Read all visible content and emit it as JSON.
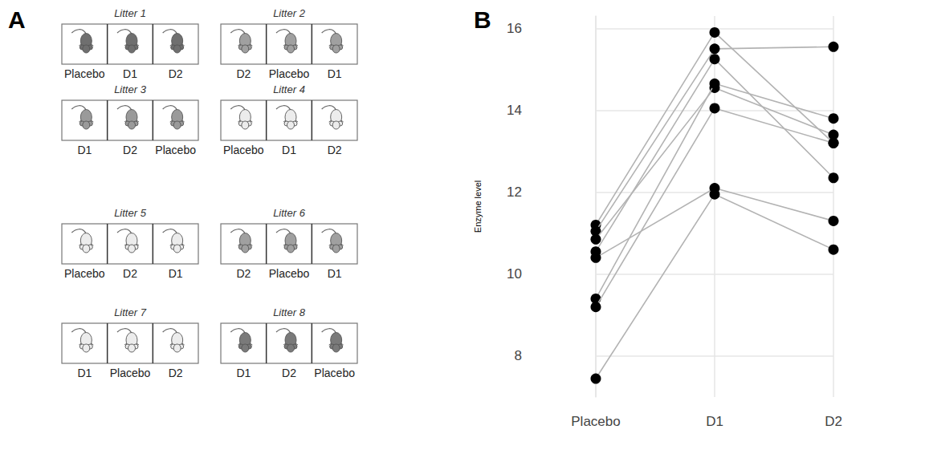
{
  "panel_labels": [
    "A",
    "B"
  ],
  "litters": [
    {
      "title": "Litter 1",
      "color": "#6f6f6f",
      "treatments": [
        "Placebo",
        "D1",
        "D2"
      ]
    },
    {
      "title": "Litter 2",
      "color": "#a0a0a0",
      "treatments": [
        "D2",
        "Placebo",
        "D1"
      ]
    },
    {
      "title": "Litter 3",
      "color": "#9a9a9a",
      "treatments": [
        "D1",
        "D2",
        "Placebo"
      ]
    },
    {
      "title": "Litter 4",
      "color": "#ececec",
      "treatments": [
        "Placebo",
        "D1",
        "D2"
      ]
    },
    {
      "title": "Litter 5",
      "color": "#ececec",
      "treatments": [
        "Placebo",
        "D2",
        "D1"
      ]
    },
    {
      "title": "Litter 6",
      "color": "#a0a0a0",
      "treatments": [
        "D2",
        "Placebo",
        "D1"
      ]
    },
    {
      "title": "Litter 7",
      "color": "#ececec",
      "treatments": [
        "D1",
        "Placebo",
        "D2"
      ]
    },
    {
      "title": "Litter 8",
      "color": "#7a7a7a",
      "treatments": [
        "D1",
        "D2",
        "Placebo"
      ]
    }
  ],
  "chart_data": {
    "type": "line",
    "ylabel": "Enzyme level",
    "categories": [
      "Placebo",
      "D1",
      "D2"
    ],
    "series": [
      {
        "values": [
          11.2,
          15.9,
          13.2
        ]
      },
      {
        "values": [
          11.05,
          15.5,
          15.55
        ]
      },
      {
        "values": [
          10.85,
          14.55,
          13.4
        ]
      },
      {
        "values": [
          10.55,
          15.25,
          12.35
        ]
      },
      {
        "values": [
          10.4,
          12.1,
          11.3
        ]
      },
      {
        "values": [
          9.4,
          14.65,
          13.8
        ]
      },
      {
        "values": [
          9.2,
          14.05,
          13.2
        ]
      },
      {
        "values": [
          7.45,
          11.95,
          10.6
        ]
      }
    ],
    "color": "#b3b3b3",
    "marker": "circle",
    "ylim": [
      7,
      16.3
    ],
    "yticks": [
      8,
      10,
      12,
      14,
      16
    ],
    "grid": true
  }
}
